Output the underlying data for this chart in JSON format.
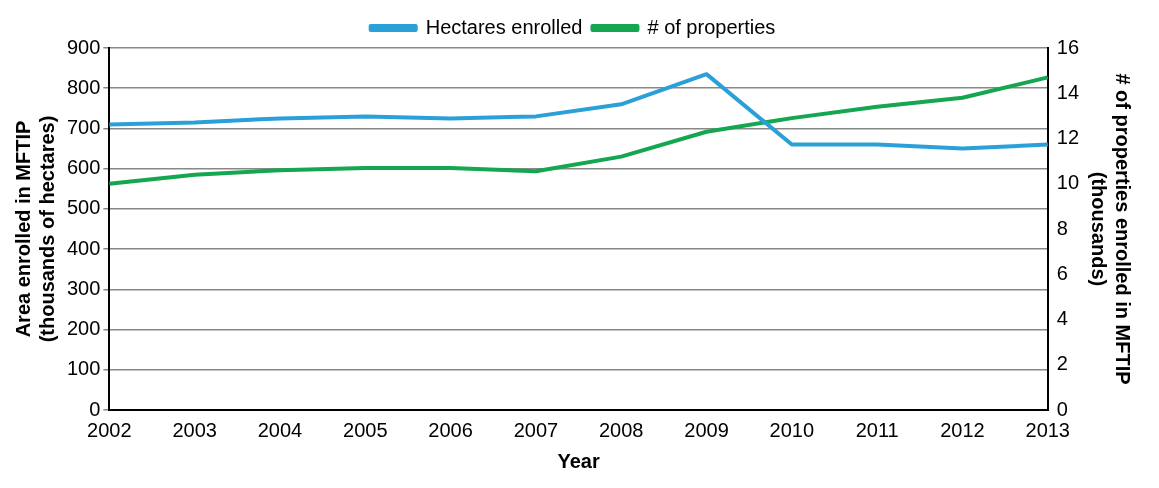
{
  "chart_data": {
    "type": "line",
    "categories": [
      "2002",
      "2003",
      "2004",
      "2005",
      "2006",
      "2007",
      "2008",
      "2009",
      "2010",
      "2011",
      "2012",
      "2013"
    ],
    "xlabel": "Year",
    "ylabel": "Area enrolled in MFTIP\n(thousands of hectares)",
    "y2label": "# of properties enrolled in MFTIP\n(thousands)",
    "series": [
      {
        "name": "Hectares enrolled",
        "color": "#2ba0d8",
        "values": [
          710,
          715,
          725,
          730,
          725,
          730,
          760,
          835,
          660,
          660,
          650,
          660
        ]
      },
      {
        "name": "# of properties",
        "color": "#14a651",
        "axis": "y2",
        "values": [
          10.0,
          10.4,
          10.6,
          10.7,
          10.7,
          10.55,
          11.2,
          12.3,
          12.9,
          13.4,
          13.8,
          14.7
        ]
      }
    ],
    "ylim": [
      0,
      900
    ],
    "yticks": [
      0,
      100,
      200,
      300,
      400,
      500,
      600,
      700,
      800,
      900
    ],
    "y2lim": [
      0,
      16
    ],
    "y2ticks": [
      0,
      2,
      4,
      6,
      8,
      10,
      12,
      14,
      16
    ],
    "grid": "y",
    "legend": "top",
    "marker": "none",
    "line_style": "solid"
  }
}
